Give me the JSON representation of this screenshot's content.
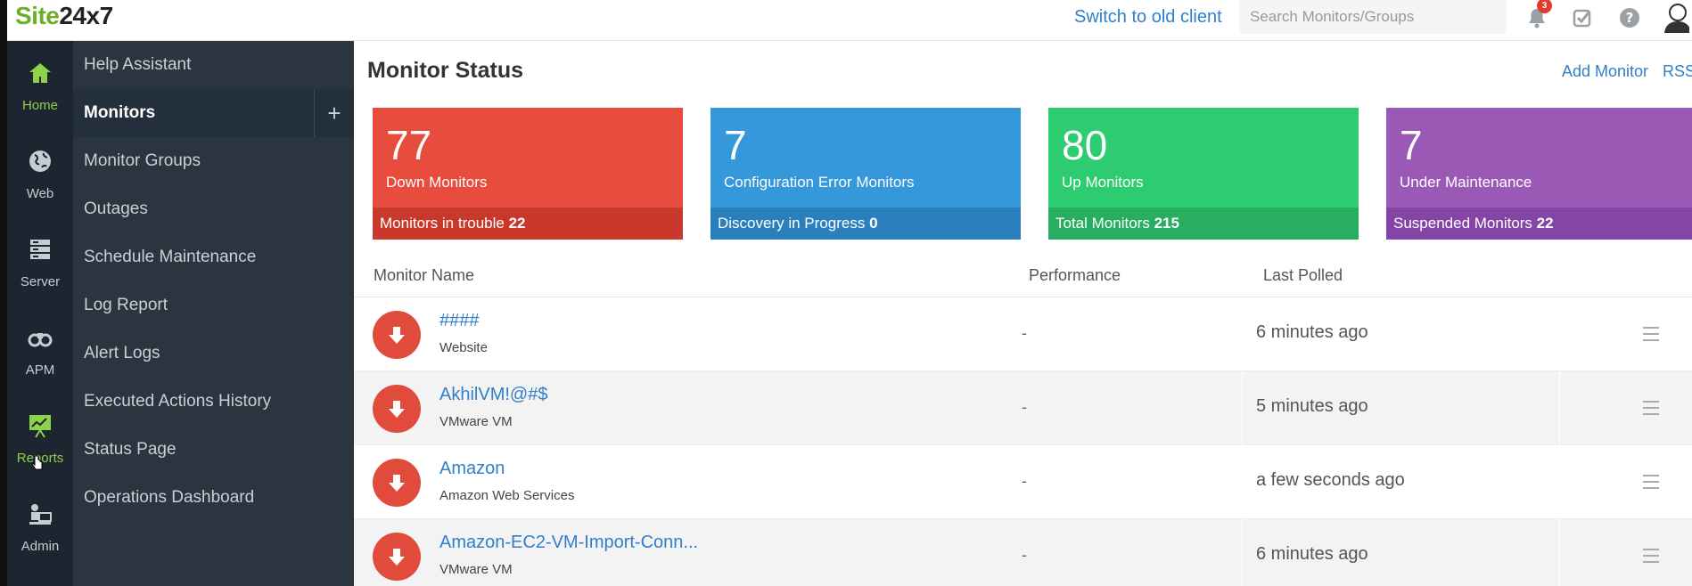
{
  "brand": {
    "logo_green": "Site",
    "logo_dark": "24x7"
  },
  "topbar": {
    "switch_label": "Switch to old client",
    "search_placeholder": "Search Monitors/Groups",
    "notification_count": "3",
    "icons": [
      "bell-icon",
      "task-check-icon",
      "help-icon",
      "user-avatar-icon"
    ]
  },
  "rail": [
    {
      "label": "Home",
      "icon": "home-icon",
      "active": true
    },
    {
      "label": "Web",
      "icon": "globe-icon"
    },
    {
      "label": "Server",
      "icon": "server-icon"
    },
    {
      "label": "APM",
      "icon": "binoculars-icon"
    },
    {
      "label": "Reports",
      "icon": "chart-board-icon",
      "hover": true
    },
    {
      "label": "Admin",
      "icon": "admin-icon"
    }
  ],
  "submenu": [
    {
      "label": "Help Assistant"
    },
    {
      "label": "Monitors",
      "active": true
    },
    {
      "label": "Monitor Groups"
    },
    {
      "label": "Outages"
    },
    {
      "label": "Schedule Maintenance"
    },
    {
      "label": "Log Report"
    },
    {
      "label": "Alert Logs"
    },
    {
      "label": "Executed Actions History"
    },
    {
      "label": "Status Page"
    },
    {
      "label": "Operations Dashboard"
    }
  ],
  "submenu_plus": "+",
  "main": {
    "title": "Monitor Status",
    "add_monitor": "Add Monitor",
    "rss": "RSS"
  },
  "cards": [
    {
      "count": "77",
      "title": "Down Monitors",
      "foot_label": "Monitors in trouble",
      "foot_value": "22",
      "color": "#e74c3c",
      "foot_color": "#c9392b"
    },
    {
      "count": "7",
      "title": "Configuration Error Monitors",
      "foot_label": "Discovery in Progress",
      "foot_value": "0",
      "color": "#3498db",
      "foot_color": "#2a80bd"
    },
    {
      "count": "80",
      "title": "Up Monitors",
      "foot_label": "Total Monitors",
      "foot_value": "215",
      "color": "#2ecc71",
      "foot_color": "#27ae60"
    },
    {
      "count": "7",
      "title": "Under Maintenance",
      "foot_label": "Suspended Monitors",
      "foot_value": "22",
      "color": "#9b59b6",
      "foot_color": "#8445a6"
    }
  ],
  "table": {
    "headers": {
      "name": "Monitor Name",
      "performance": "Performance",
      "last_polled": "Last Polled"
    },
    "rows": [
      {
        "name": "####",
        "type": "Website",
        "performance": "-",
        "last_polled": "6 minutes ago",
        "status": "down"
      },
      {
        "name": "AkhilVM!@#$",
        "type": "VMware VM",
        "performance": "-",
        "last_polled": "5 minutes ago",
        "status": "down"
      },
      {
        "name": "Amazon",
        "type": "Amazon Web Services",
        "performance": "-",
        "last_polled": "a few seconds ago",
        "status": "down"
      },
      {
        "name": "Amazon-EC2-VM-Import-Conn...",
        "type": "VMware VM",
        "performance": "-",
        "last_polled": "6 minutes ago",
        "status": "down"
      }
    ]
  },
  "colors": {
    "accent": "#2f7fc9",
    "rail_bg": "#1d2530",
    "submenu_bg": "#2a3540",
    "active_green": "#8ed14a",
    "down_red": "#e04b3c"
  }
}
